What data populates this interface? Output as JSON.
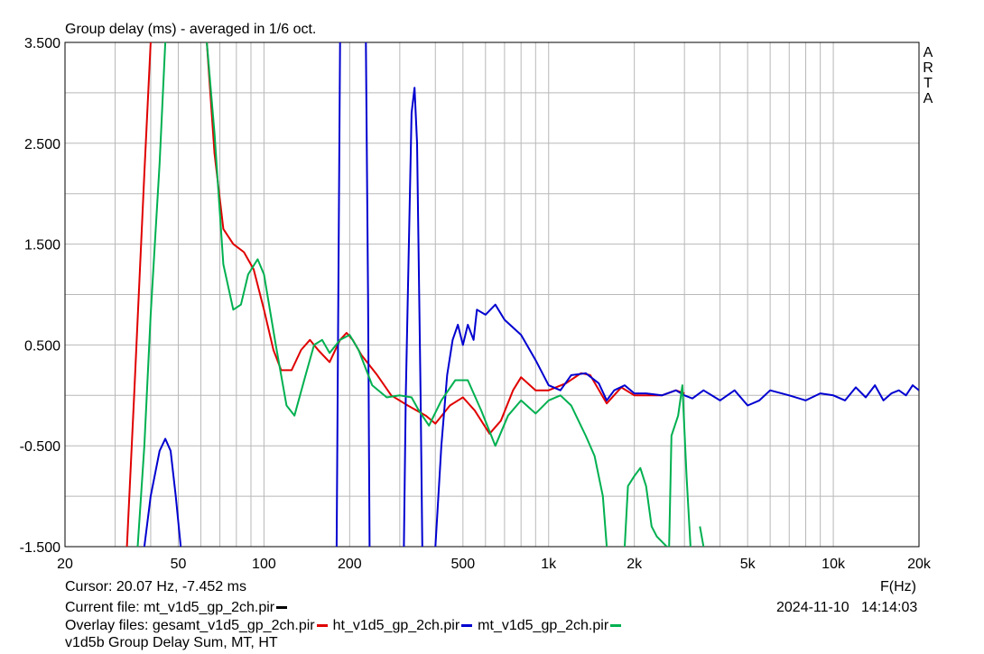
{
  "chart_data": {
    "type": "line",
    "title": "Group delay (ms) - averaged in 1/6 oct.",
    "xlabel": "F(Hz)",
    "x_scale": "log",
    "xlim": [
      20,
      20000
    ],
    "ylim": [
      -1.5,
      3.5
    ],
    "grid": true,
    "yticks": [
      -1.5,
      -0.5,
      0.5,
      1.5,
      2.5,
      3.5
    ],
    "ytick_labels": [
      "-1.500",
      "-0.500",
      "0.500",
      "1.500",
      "2.500",
      "3.500"
    ],
    "xticks": [
      20,
      50,
      100,
      200,
      500,
      1000,
      2000,
      5000,
      10000,
      20000
    ],
    "xtick_labels": [
      "20",
      "50",
      "100",
      "200",
      "500",
      "1k",
      "2k",
      "5k",
      "10k",
      "20k"
    ],
    "brand_label": [
      "A",
      "R",
      "T",
      "A"
    ],
    "series": [
      {
        "name": "gesamt_v1d5_gp_2ch.pir",
        "color": "#e00000",
        "points": [
          [
            33,
            -1.5
          ],
          [
            35,
            0.0
          ],
          [
            38,
            2.2
          ],
          [
            40,
            3.5
          ],
          [
            null,
            null
          ],
          [
            63,
            3.5
          ],
          [
            67,
            2.4
          ],
          [
            72,
            1.65
          ],
          [
            78,
            1.5
          ],
          [
            85,
            1.42
          ],
          [
            92,
            1.25
          ],
          [
            100,
            0.85
          ],
          [
            108,
            0.45
          ],
          [
            115,
            0.25
          ],
          [
            125,
            0.25
          ],
          [
            135,
            0.45
          ],
          [
            145,
            0.55
          ],
          [
            155,
            0.45
          ],
          [
            170,
            0.33
          ],
          [
            185,
            0.55
          ],
          [
            195,
            0.62
          ],
          [
            205,
            0.55
          ],
          [
            220,
            0.4
          ],
          [
            250,
            0.2
          ],
          [
            280,
            0.0
          ],
          [
            320,
            -0.1
          ],
          [
            370,
            -0.2
          ],
          [
            400,
            -0.28
          ],
          [
            450,
            -0.1
          ],
          [
            500,
            -0.02
          ],
          [
            550,
            -0.15
          ],
          [
            620,
            -0.38
          ],
          [
            680,
            -0.25
          ],
          [
            750,
            0.05
          ],
          [
            800,
            0.18
          ],
          [
            900,
            0.05
          ],
          [
            1000,
            0.05
          ],
          [
            1150,
            0.12
          ],
          [
            1300,
            0.22
          ],
          [
            1400,
            0.2
          ],
          [
            1600,
            -0.08
          ],
          [
            1800,
            0.08
          ],
          [
            2000,
            0.0
          ],
          [
            2200,
            0.0
          ],
          [
            2500,
            0.0
          ],
          [
            2800,
            0.05
          ],
          [
            3000,
            0.02
          ]
        ]
      },
      {
        "name": "ht_v1d5_gp_2ch.pir",
        "color": "#0000d0",
        "points": [
          [
            38,
            -1.5
          ],
          [
            40,
            -1.0
          ],
          [
            43,
            -0.55
          ],
          [
            45,
            -0.43
          ],
          [
            47,
            -0.55
          ],
          [
            49,
            -1.0
          ],
          [
            51,
            -1.5
          ],
          [
            null,
            null
          ],
          [
            180,
            -1.5
          ],
          [
            182,
            0.5
          ],
          [
            185,
            3.5
          ],
          [
            null,
            null
          ],
          [
            228,
            3.5
          ],
          [
            232,
            1.0
          ],
          [
            235,
            -1.5
          ],
          [
            null,
            null
          ],
          [
            310,
            -1.5
          ],
          [
            315,
            0.0
          ],
          [
            330,
            2.8
          ],
          [
            338,
            3.05
          ],
          [
            345,
            2.5
          ],
          [
            355,
            0.0
          ],
          [
            360,
            -1.5
          ],
          [
            null,
            null
          ],
          [
            400,
            -1.5
          ],
          [
            420,
            -0.5
          ],
          [
            440,
            0.2
          ],
          [
            460,
            0.55
          ],
          [
            480,
            0.7
          ],
          [
            500,
            0.5
          ],
          [
            520,
            0.7
          ],
          [
            545,
            0.55
          ],
          [
            560,
            0.85
          ],
          [
            600,
            0.8
          ],
          [
            650,
            0.9
          ],
          [
            700,
            0.75
          ],
          [
            800,
            0.6
          ],
          [
            900,
            0.35
          ],
          [
            1000,
            0.1
          ],
          [
            1100,
            0.05
          ],
          [
            1200,
            0.2
          ],
          [
            1350,
            0.22
          ],
          [
            1500,
            0.12
          ],
          [
            1600,
            -0.05
          ],
          [
            1700,
            0.05
          ],
          [
            1850,
            0.1
          ],
          [
            2000,
            0.02
          ],
          [
            2200,
            0.02
          ],
          [
            2500,
            0.0
          ],
          [
            2800,
            0.05
          ],
          [
            3000,
            0.0
          ],
          [
            3200,
            -0.03
          ],
          [
            3500,
            0.05
          ],
          [
            4000,
            -0.05
          ],
          [
            4500,
            0.05
          ],
          [
            5000,
            -0.1
          ],
          [
            5500,
            -0.05
          ],
          [
            6000,
            0.05
          ],
          [
            7000,
            0.0
          ],
          [
            8000,
            -0.05
          ],
          [
            9000,
            0.02
          ],
          [
            10000,
            0.0
          ],
          [
            11000,
            -0.05
          ],
          [
            12000,
            0.08
          ],
          [
            13000,
            -0.02
          ],
          [
            14000,
            0.1
          ],
          [
            15000,
            -0.05
          ],
          [
            16000,
            0.02
          ],
          [
            17000,
            0.05
          ],
          [
            18000,
            0.0
          ],
          [
            19000,
            0.1
          ],
          [
            20000,
            0.05
          ]
        ]
      },
      {
        "name": "mt_v1d5_gp_2ch.pir",
        "color": "#00b050",
        "points": [
          [
            36,
            -1.5
          ],
          [
            38,
            -0.5
          ],
          [
            40,
            0.8
          ],
          [
            43,
            2.3
          ],
          [
            45,
            3.5
          ],
          [
            null,
            null
          ],
          [
            63,
            3.5
          ],
          [
            67,
            2.6
          ],
          [
            72,
            1.3
          ],
          [
            78,
            0.85
          ],
          [
            83,
            0.9
          ],
          [
            88,
            1.2
          ],
          [
            95,
            1.35
          ],
          [
            100,
            1.2
          ],
          [
            110,
            0.5
          ],
          [
            120,
            -0.1
          ],
          [
            128,
            -0.2
          ],
          [
            140,
            0.2
          ],
          [
            150,
            0.5
          ],
          [
            160,
            0.55
          ],
          [
            170,
            0.42
          ],
          [
            185,
            0.55
          ],
          [
            200,
            0.6
          ],
          [
            215,
            0.45
          ],
          [
            240,
            0.1
          ],
          [
            270,
            -0.02
          ],
          [
            300,
            0.0
          ],
          [
            330,
            -0.02
          ],
          [
            350,
            -0.15
          ],
          [
            380,
            -0.3
          ],
          [
            420,
            -0.05
          ],
          [
            470,
            0.15
          ],
          [
            520,
            0.15
          ],
          [
            580,
            -0.15
          ],
          [
            650,
            -0.5
          ],
          [
            720,
            -0.2
          ],
          [
            800,
            -0.05
          ],
          [
            900,
            -0.18
          ],
          [
            1000,
            -0.05
          ],
          [
            1100,
            0.0
          ],
          [
            1200,
            -0.1
          ],
          [
            1350,
            -0.4
          ],
          [
            1450,
            -0.6
          ],
          [
            1550,
            -1.0
          ],
          [
            1600,
            -1.5
          ],
          [
            null,
            null
          ],
          [
            1850,
            -1.5
          ],
          [
            1900,
            -0.9
          ],
          [
            2000,
            -0.8
          ],
          [
            2100,
            -0.72
          ],
          [
            2200,
            -0.9
          ],
          [
            2300,
            -1.3
          ],
          [
            2400,
            -1.4
          ],
          [
            2600,
            -1.5
          ],
          [
            null,
            null
          ],
          [
            2650,
            -1.5
          ],
          [
            2700,
            -0.4
          ],
          [
            2850,
            -0.2
          ],
          [
            2950,
            0.1
          ],
          [
            3050,
            -0.8
          ],
          [
            3150,
            -1.5
          ],
          [
            null,
            null
          ],
          [
            3400,
            -1.3
          ],
          [
            3500,
            -1.5
          ]
        ]
      }
    ]
  },
  "cursor_line": "Cursor: 20.07 Hz, -7.452 ms",
  "current_file_label": "Current file: mt_v1d5_gp_2ch.pir",
  "current_file_color": "#000000",
  "timestamp": "2024-11-10   14:14:03",
  "overlay_label": "Overlay files: ",
  "overlay_files": [
    {
      "name": "gesamt_v1d5_gp_2ch.pir",
      "color": "#e00000"
    },
    {
      "name": "ht_v1d5_gp_2ch.pir",
      "color": "#0000d0"
    },
    {
      "name": "mt_v1d5_gp_2ch.pir",
      "color": "#00b050"
    }
  ],
  "description": "v1d5b Group Delay Sum, MT, HT"
}
